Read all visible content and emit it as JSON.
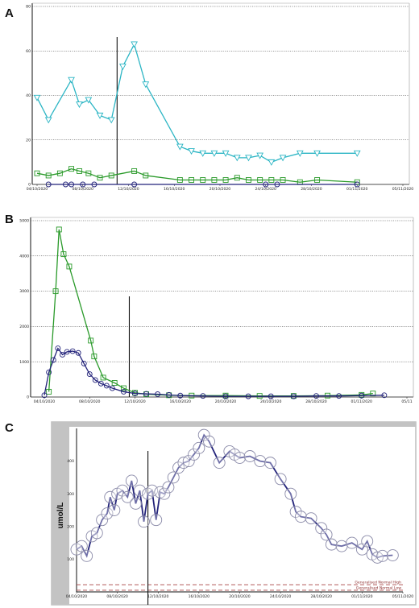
{
  "panels": {
    "a": "A",
    "b": "B",
    "c": "C"
  },
  "colors": {
    "cyan": "#2bb5c4",
    "green": "#2a9a2a",
    "navy": "#23237a",
    "ref": "#a94444",
    "graybar": "#c3c3c3"
  },
  "chart_data": [
    {
      "type": "line",
      "grid": true,
      "ylim": [
        0,
        80
      ],
      "yticks": [
        "0",
        "20",
        "40",
        "60",
        "80"
      ],
      "xlim": [
        "2020-10-04",
        "2020-11-05"
      ],
      "xticks": [
        "04/10/2020",
        "08/10/2020",
        "12/10/2020",
        "16/10/2020",
        "20/10/2020",
        "24/10/2020",
        "28/10/2020",
        "01/11/2020",
        "05/11/2020"
      ],
      "marker_line": "2020-10-11",
      "series": [
        {
          "marker": "triangle-down",
          "color": "#2bb5c4",
          "points": [
            [
              "2020-10-04",
              39
            ],
            [
              "2020-10-05",
              29
            ],
            [
              "2020-10-07",
              47
            ],
            [
              "2020-10-07.7",
              36
            ],
            [
              "2020-10-08.5",
              38
            ],
            [
              "2020-10-09.5",
              31
            ],
            [
              "2020-10-10.5",
              29
            ],
            [
              "2020-10-11.5",
              53
            ],
            [
              "2020-10-12.5",
              63
            ],
            [
              "2020-10-13.5",
              45
            ],
            [
              "2020-10-16.5",
              17
            ],
            [
              "2020-10-17.5",
              15
            ],
            [
              "2020-10-18.5",
              14
            ],
            [
              "2020-10-19.5",
              14
            ],
            [
              "2020-10-20.5",
              14
            ],
            [
              "2020-10-21.5",
              12
            ],
            [
              "2020-10-22.5",
              12
            ],
            [
              "2020-10-23.5",
              13
            ],
            [
              "2020-10-24.5",
              10
            ],
            [
              "2020-10-25.5",
              12
            ],
            [
              "2020-10-27",
              14
            ],
            [
              "2020-10-28.5",
              14
            ],
            [
              "2020-11-01",
              14
            ]
          ]
        },
        {
          "marker": "square",
          "color": "#2a9a2a",
          "points": [
            [
              "2020-10-04",
              5
            ],
            [
              "2020-10-05",
              4
            ],
            [
              "2020-10-06",
              5
            ],
            [
              "2020-10-07",
              7
            ],
            [
              "2020-10-07.7",
              6
            ],
            [
              "2020-10-08.5",
              5
            ],
            [
              "2020-10-09.5",
              3
            ],
            [
              "2020-10-10.5",
              4
            ],
            [
              "2020-10-12.5",
              6
            ],
            [
              "2020-10-13.5",
              4
            ],
            [
              "2020-10-16.5",
              2
            ],
            [
              "2020-10-17.5",
              2
            ],
            [
              "2020-10-18.5",
              2
            ],
            [
              "2020-10-19.5",
              2
            ],
            [
              "2020-10-20.5",
              2
            ],
            [
              "2020-10-21.5",
              3
            ],
            [
              "2020-10-22.5",
              2
            ],
            [
              "2020-10-23.5",
              2
            ],
            [
              "2020-10-24.5",
              2
            ],
            [
              "2020-10-25.5",
              2
            ],
            [
              "2020-10-27",
              1
            ],
            [
              "2020-10-28.5",
              2
            ],
            [
              "2020-11-01",
              1
            ]
          ]
        },
        {
          "marker": "circle",
          "color": "#23237a",
          "points": [
            [
              "2020-10-05",
              0
            ],
            [
              "2020-10-06.5",
              0
            ],
            [
              "2020-10-07",
              0
            ],
            [
              "2020-10-08",
              0
            ],
            [
              "2020-10-09",
              0
            ],
            [
              "2020-10-12.5",
              0
            ],
            [
              "2020-10-24",
              0
            ],
            [
              "2020-10-25",
              0
            ],
            [
              "2020-11-01",
              0
            ]
          ]
        }
      ]
    },
    {
      "type": "line",
      "grid": true,
      "ylim": [
        0,
        5000
      ],
      "yticks": [
        "0",
        "1000",
        "2000",
        "3000",
        "4000",
        "5000"
      ],
      "xlim": [
        "2020-10-04",
        "2020-11-05"
      ],
      "xticks": [
        "04/10/2020",
        "08/10/2020",
        "12/10/2020",
        "16/10/2020",
        "20/10/2020",
        "24/10/2020",
        "28/10/2020",
        "01/11/2020",
        "05/11"
      ],
      "marker_line": "2020-10-11.5",
      "series": [
        {
          "marker": "square",
          "color": "#2a9a2a",
          "points": [
            [
              "2020-10-04.4",
              150
            ],
            [
              "2020-10-05",
              3000
            ],
            [
              "2020-10-05.3",
              4750
            ],
            [
              "2020-10-05.7",
              4050
            ],
            [
              "2020-10-06.2",
              3700
            ],
            [
              "2020-10-08.1",
              1600
            ],
            [
              "2020-10-08.4",
              1150
            ],
            [
              "2020-10-09.2",
              550
            ],
            [
              "2020-10-10.2",
              400
            ],
            [
              "2020-10-11",
              250
            ],
            [
              "2020-10-12",
              120
            ],
            [
              "2020-10-13",
              80
            ],
            [
              "2020-10-15",
              50
            ],
            [
              "2020-10-17",
              40
            ],
            [
              "2020-10-20",
              40
            ],
            [
              "2020-10-23",
              30
            ],
            [
              "2020-10-26",
              30
            ],
            [
              "2020-10-29",
              40
            ],
            [
              "2020-11-01",
              60
            ],
            [
              "2020-11-02",
              100
            ]
          ]
        },
        {
          "marker": "circle",
          "color": "#23237a",
          "points": [
            [
              "2020-10-04",
              50
            ],
            [
              "2020-10-04.4",
              700
            ],
            [
              "2020-10-04.8",
              1050
            ],
            [
              "2020-10-05.2",
              1380
            ],
            [
              "2020-10-05.6",
              1200
            ],
            [
              "2020-10-06",
              1280
            ],
            [
              "2020-10-06.5",
              1300
            ],
            [
              "2020-10-07",
              1250
            ],
            [
              "2020-10-07.5",
              950
            ],
            [
              "2020-10-08",
              650
            ],
            [
              "2020-10-08.5",
              480
            ],
            [
              "2020-10-09",
              380
            ],
            [
              "2020-10-09.5",
              320
            ],
            [
              "2020-10-10",
              250
            ],
            [
              "2020-10-11",
              150
            ],
            [
              "2020-10-12",
              100
            ],
            [
              "2020-10-13",
              90
            ],
            [
              "2020-10-14",
              80
            ],
            [
              "2020-10-15",
              60
            ],
            [
              "2020-10-16",
              40
            ],
            [
              "2020-10-18",
              30
            ],
            [
              "2020-10-20",
              20
            ],
            [
              "2020-10-22",
              20
            ],
            [
              "2020-10-24",
              20
            ],
            [
              "2020-10-26",
              20
            ],
            [
              "2020-10-28",
              30
            ],
            [
              "2020-10-30",
              30
            ],
            [
              "2020-11-01",
              40
            ],
            [
              "2020-11-03",
              50
            ]
          ]
        }
      ]
    },
    {
      "type": "line",
      "grid": false,
      "ylabel": "umol/L",
      "ylim": [
        0,
        500
      ],
      "yticks": [
        "100",
        "200",
        "300",
        "400"
      ],
      "xlim": [
        "2020-10-04",
        "2020-11-05"
      ],
      "xticks": [
        "04/10/2020",
        "08/10/2020",
        "12/10/2020",
        "16/10/2020",
        "20/10/2020",
        "24/10/2020",
        "28/10/2020",
        "01/11/2020",
        "05/11/2020"
      ],
      "marker_line": "2020-10-11",
      "reference_lines": [
        {
          "label": "Generalised Normal High",
          "value": 22
        },
        {
          "label": "Generalised Normal Low",
          "value": 5
        }
      ],
      "series": [
        {
          "marker": "circle",
          "color": "#23237a",
          "points": [
            [
              "2020-10-04",
              130
            ],
            [
              "2020-10-04.5",
              140
            ],
            [
              "2020-10-05",
              110
            ],
            [
              "2020-10-05.5",
              170
            ],
            [
              "2020-10-06",
              180
            ],
            [
              "2020-10-06.5",
              220
            ],
            [
              "2020-10-07",
              240
            ],
            [
              "2020-10-07.3",
              290
            ],
            [
              "2020-10-07.7",
              250
            ],
            [
              "2020-10-08",
              300
            ],
            [
              "2020-10-08.5",
              310
            ],
            [
              "2020-10-09",
              290
            ],
            [
              "2020-10-09.4",
              340
            ],
            [
              "2020-10-09.8",
              270
            ],
            [
              "2020-10-10.2",
              310
            ],
            [
              "2020-10-10.6",
              215
            ],
            [
              "2020-10-11",
              300
            ],
            [
              "2020-10-11.4",
              310
            ],
            [
              "2020-10-11.8",
              220
            ],
            [
              "2020-10-12.2",
              305
            ],
            [
              "2020-10-12.6",
              300
            ],
            [
              "2020-10-13",
              320
            ],
            [
              "2020-10-13.5",
              350
            ],
            [
              "2020-10-14",
              380
            ],
            [
              "2020-10-14.5",
              395
            ],
            [
              "2020-10-15",
              400
            ],
            [
              "2020-10-15.5",
              420
            ],
            [
              "2020-10-16",
              440
            ],
            [
              "2020-10-16.5",
              480
            ],
            [
              "2020-10-17",
              460
            ],
            [
              "2020-10-18",
              395
            ],
            [
              "2020-10-19",
              430
            ],
            [
              "2020-10-19.5",
              420
            ],
            [
              "2020-10-20",
              410
            ],
            [
              "2020-10-21",
              415
            ],
            [
              "2020-10-22",
              400
            ],
            [
              "2020-10-23",
              395
            ],
            [
              "2020-10-24",
              345
            ],
            [
              "2020-10-25",
              300
            ],
            [
              "2020-10-25.5",
              245
            ],
            [
              "2020-10-26",
              230
            ],
            [
              "2020-10-27",
              225
            ],
            [
              "2020-10-28",
              195
            ],
            [
              "2020-10-28.5",
              175
            ],
            [
              "2020-10-29",
              145
            ],
            [
              "2020-10-30",
              140
            ],
            [
              "2020-10-31",
              150
            ],
            [
              "2020-11-01",
              130
            ],
            [
              "2020-11-01.5",
              155
            ],
            [
              "2020-11-02",
              115
            ],
            [
              "2020-11-02.5",
              105
            ],
            [
              "2020-11-03",
              110
            ],
            [
              "2020-11-04",
              112
            ]
          ]
        }
      ]
    }
  ]
}
